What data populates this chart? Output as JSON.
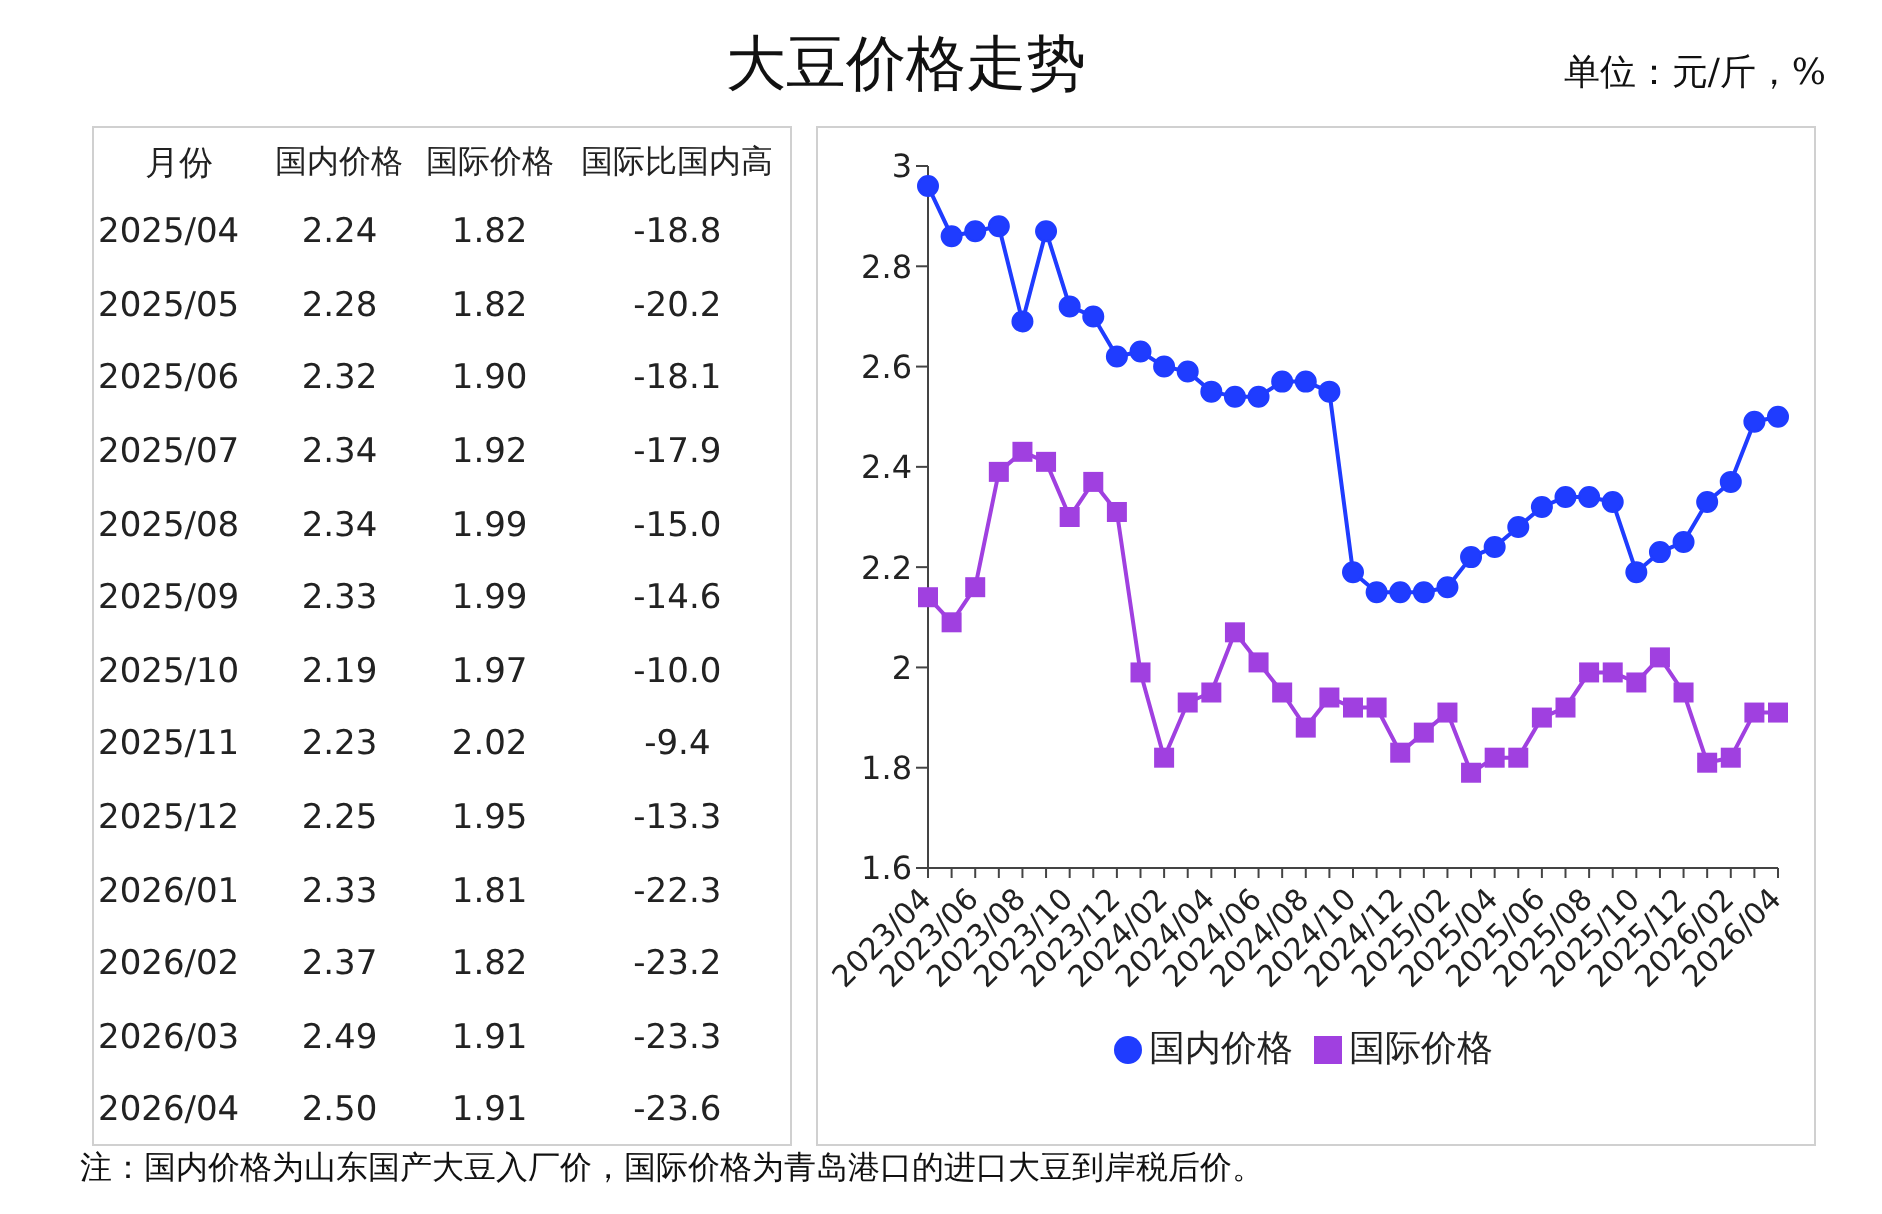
{
  "chart_data": [
    {
      "type": "other",
      "title": "大豆价格走势",
      "subtitle": "单位：元/斤，%",
      "annotations": [
        "注：国内价格为山东国产大豆入厂价，国际价格为青岛港口的进口大豆到岸税后价。"
      ],
      "xlabel": "月份",
      "data_labels": true,
      "categories": [
        "2025/04",
        "2025/05",
        "2025/06",
        "2025/07",
        "2025/08",
        "2025/09",
        "2025/10",
        "2025/11",
        "2025/12",
        "2026/01",
        "2026/02",
        "2026/03",
        "2026/04"
      ],
      "series": [
        {
          "name": "国内价格",
          "value_labels": [
            "2.24",
            "2.28",
            "2.32",
            "2.34",
            "2.34",
            "2.33",
            "2.19",
            "2.23",
            "2.25",
            "2.33",
            "2.37",
            "2.49",
            "2.50"
          ],
          "values": [
            2.24,
            2.28,
            2.32,
            2.34,
            2.34,
            2.33,
            2.19,
            2.23,
            2.25,
            2.33,
            2.37,
            2.49,
            2.5
          ]
        },
        {
          "name": "国际价格",
          "value_labels": [
            "1.82",
            "1.82",
            "1.90",
            "1.92",
            "1.99",
            "1.99",
            "1.97",
            "2.02",
            "1.95",
            "1.81",
            "1.82",
            "1.91",
            "1.91"
          ],
          "values": [
            1.82,
            1.82,
            1.9,
            1.92,
            1.99,
            1.99,
            1.97,
            2.02,
            1.95,
            1.81,
            1.82,
            1.91,
            1.91
          ]
        },
        {
          "name": "国际比国内高",
          "values": [
            -18.8,
            -20.2,
            -18.1,
            -17.9,
            -15.0,
            -14.6,
            -10.0,
            -9.4,
            -13.3,
            -22.3,
            -23.2,
            -23.3,
            -23.6
          ],
          "value_labels": [
            "-18.8",
            "-20.2",
            "-18.1",
            "-17.9",
            "-15.0",
            "-14.6",
            "-10.0",
            "-9.4",
            "-13.3",
            "-22.3",
            "-23.2",
            "-23.3",
            "-23.6"
          ]
        }
      ]
    },
    {
      "type": "line",
      "legend": "bottom",
      "grid": false,
      "categories": [
        "2023/04",
        null,
        "2023/06",
        null,
        "2023/08",
        null,
        "2023/10",
        null,
        "2023/12",
        null,
        "2024/02",
        null,
        "2024/04",
        null,
        "2024/06",
        null,
        "2024/08",
        null,
        "2024/10",
        null,
        "2024/12",
        null,
        "2025/02",
        null,
        "2025/04",
        null,
        "2025/06",
        null,
        "2025/08",
        null,
        "2025/10",
        null,
        "2025/12",
        null,
        "2026/02",
        null,
        "2026/04"
      ],
      "ylim": [
        1.6,
        3
      ],
      "yticks": [
        1.6,
        1.8,
        2,
        2.2,
        2.4,
        2.6,
        2.8,
        3
      ],
      "series": [
        {
          "name": "国内价格",
          "color": "#1f3cff",
          "marker": "circle",
          "values": [
            2.96,
            2.86,
            2.87,
            2.88,
            2.69,
            2.87,
            2.72,
            2.7,
            2.62,
            2.63,
            2.6,
            2.59,
            2.55,
            2.54,
            2.54,
            2.57,
            2.57,
            2.55,
            2.19,
            2.15,
            2.15,
            2.15,
            2.16,
            2.22,
            2.24,
            2.28,
            2.32,
            2.34,
            2.34,
            2.33,
            2.19,
            2.23,
            2.25,
            2.33,
            2.37,
            2.49,
            2.5
          ]
        },
        {
          "name": "国际价格",
          "color": "#a040e0",
          "marker": "square",
          "values": [
            2.14,
            2.09,
            2.16,
            2.39,
            2.43,
            2.41,
            2.3,
            2.37,
            2.31,
            1.99,
            1.82,
            1.93,
            1.95,
            2.07,
            2.01,
            1.95,
            1.88,
            1.94,
            1.92,
            1.92,
            1.83,
            1.87,
            1.91,
            1.79,
            1.82,
            1.82,
            1.9,
            1.92,
            1.99,
            1.99,
            1.97,
            2.02,
            1.95,
            1.81,
            1.82,
            1.91,
            1.91
          ]
        }
      ]
    }
  ]
}
